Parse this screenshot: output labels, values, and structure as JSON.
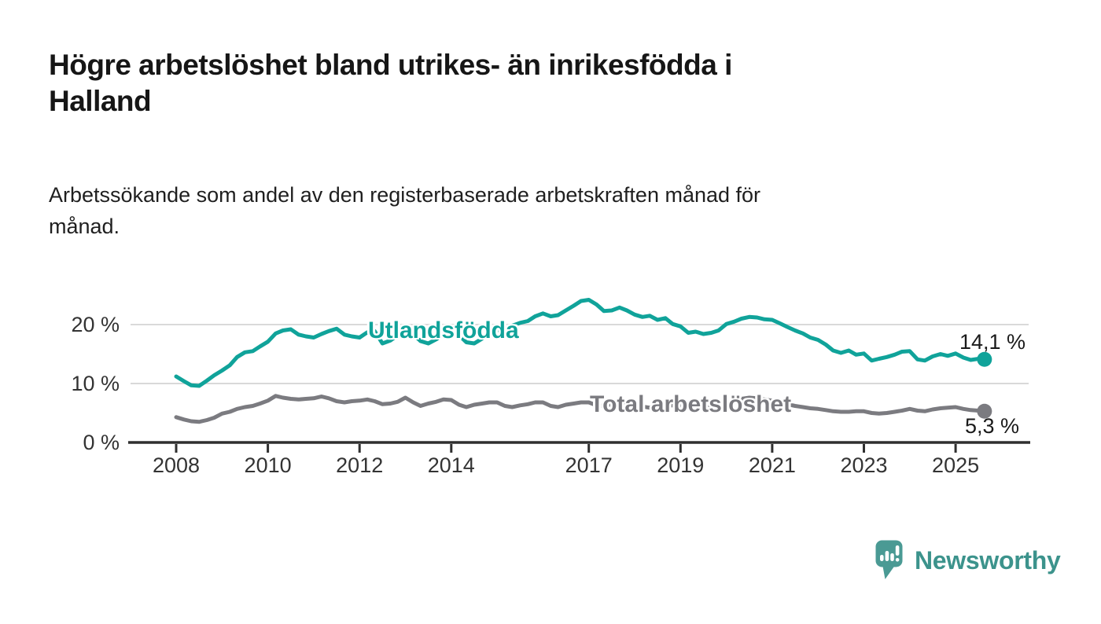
{
  "header": {
    "title_lines": [
      "Högre arbetslöshet bland utrikes- än inrikesfödda i",
      "Halland"
    ],
    "subtitle_lines": [
      "Arbetssökande som andel av den registerbaserade arbetskraften månad för",
      "månad."
    ]
  },
  "footer": {
    "brand": "Newsworthy"
  },
  "colors": {
    "accent_teal": "#10a39a",
    "accent_gray": "#7b7b80",
    "axis": "#2f2f2f",
    "gridline": "#d9d9d9",
    "text": "#1a1a1a",
    "logo_teal": "#4a9a94",
    "logo_text_teal": "#3c938c"
  },
  "chart_data": {
    "type": "line",
    "title": "Högre arbetslöshet bland utrikes- än inrikesfödda i Halland",
    "subtitle": "Arbetssökande som andel av den registerbaserade arbetskraften månad för månad.",
    "unit": "%",
    "xlabel": "",
    "ylabel": "",
    "grid": true,
    "legend_position": "inline-labels",
    "xlim": [
      2007.0,
      2026.6
    ],
    "ylim": [
      0,
      25.5
    ],
    "x_ticks": [
      2008,
      2010,
      2012,
      2014,
      2017,
      2019,
      2021,
      2023,
      2025
    ],
    "x_tick_labels": [
      "2008",
      "2010",
      "2012",
      "2014",
      "2017",
      "2019",
      "2021",
      "2023",
      "2025"
    ],
    "y_ticks": [
      0,
      10,
      20
    ],
    "y_tick_labels": [
      "0 %",
      "10 %",
      "20 %"
    ],
    "x": [
      2008,
      2008.17,
      2008.33,
      2008.5,
      2008.67,
      2008.83,
      2009,
      2009.17,
      2009.33,
      2009.5,
      2009.67,
      2009.83,
      2010,
      2010.17,
      2010.33,
      2010.5,
      2010.67,
      2010.83,
      2011,
      2011.17,
      2011.33,
      2011.5,
      2011.67,
      2011.83,
      2012,
      2012.17,
      2012.33,
      2012.5,
      2012.67,
      2012.83,
      2013,
      2013.17,
      2013.33,
      2013.5,
      2013.67,
      2013.83,
      2014,
      2014.17,
      2014.33,
      2014.5,
      2014.67,
      2014.83,
      2015,
      2015.17,
      2015.33,
      2015.5,
      2015.67,
      2015.83,
      2016,
      2016.17,
      2016.33,
      2016.5,
      2016.67,
      2016.83,
      2017,
      2017.17,
      2017.33,
      2017.5,
      2017.67,
      2017.83,
      2018,
      2018.17,
      2018.33,
      2018.5,
      2018.67,
      2018.83,
      2019,
      2019.17,
      2019.33,
      2019.5,
      2019.67,
      2019.83,
      2020,
      2020.17,
      2020.33,
      2020.5,
      2020.67,
      2020.83,
      2021,
      2021.17,
      2021.33,
      2021.5,
      2021.67,
      2021.83,
      2022,
      2022.17,
      2022.33,
      2022.5,
      2022.67,
      2022.83,
      2023,
      2023.17,
      2023.33,
      2023.5,
      2023.67,
      2023.83,
      2024,
      2024.17,
      2024.33,
      2024.5,
      2024.67,
      2024.83,
      2025,
      2025.17,
      2025.33,
      2025.5,
      2025.63
    ],
    "series": [
      {
        "name": "Utlandsfödda",
        "color": "#10a39a",
        "end_label": "14,1 %",
        "end_value": 14.1,
        "values": [
          11.2,
          10.4,
          9.7,
          9.6,
          10.5,
          11.4,
          12.2,
          13.1,
          14.5,
          15.3,
          15.5,
          16.3,
          17.1,
          18.5,
          19.0,
          19.2,
          18.3,
          18.0,
          17.8,
          18.4,
          18.9,
          19.3,
          18.3,
          18.0,
          17.8,
          18.7,
          18.9,
          16.8,
          17.3,
          18.2,
          18.6,
          18.4,
          17.2,
          16.8,
          17.5,
          18.4,
          18.6,
          18.2,
          17.0,
          16.8,
          17.6,
          18.8,
          19.0,
          19.4,
          19.8,
          20.3,
          20.6,
          21.4,
          21.9,
          21.4,
          21.6,
          22.4,
          23.2,
          24.0,
          24.2,
          23.4,
          22.3,
          22.4,
          22.9,
          22.4,
          21.7,
          21.3,
          21.5,
          20.8,
          21.1,
          20.1,
          19.7,
          18.6,
          18.8,
          18.4,
          18.6,
          19.0,
          20.1,
          20.5,
          21.0,
          21.3,
          21.2,
          20.9,
          20.8,
          20.2,
          19.6,
          19.0,
          18.5,
          17.8,
          17.4,
          16.6,
          15.6,
          15.2,
          15.6,
          14.9,
          15.1,
          13.9,
          14.2,
          14.5,
          14.9,
          15.4,
          15.5,
          14.1,
          13.9,
          14.6,
          15.0,
          14.7,
          15.1,
          14.4,
          14.0,
          14.2,
          14.1
        ]
      },
      {
        "name": "Total arbetslöshet",
        "color": "#7b7b80",
        "end_label": "5,3 %",
        "end_value": 5.3,
        "values": [
          4.3,
          3.9,
          3.6,
          3.5,
          3.8,
          4.2,
          4.9,
          5.2,
          5.7,
          6.0,
          6.2,
          6.6,
          7.1,
          7.9,
          7.6,
          7.4,
          7.3,
          7.4,
          7.5,
          7.8,
          7.5,
          7.0,
          6.8,
          7.0,
          7.1,
          7.3,
          7.0,
          6.5,
          6.6,
          6.9,
          7.6,
          6.8,
          6.2,
          6.6,
          6.9,
          7.3,
          7.2,
          6.4,
          6.0,
          6.4,
          6.6,
          6.8,
          6.8,
          6.2,
          6.0,
          6.3,
          6.5,
          6.8,
          6.8,
          6.2,
          6.0,
          6.4,
          6.6,
          6.8,
          6.8,
          6.3,
          6.2,
          6.5,
          6.6,
          6.7,
          6.5,
          6.1,
          5.9,
          6.1,
          6.2,
          6.3,
          6.3,
          6.0,
          5.9,
          6.0,
          6.1,
          6.3,
          6.6,
          7.0,
          7.4,
          7.6,
          7.5,
          7.3,
          7.1,
          6.8,
          6.5,
          6.2,
          6.0,
          5.8,
          5.7,
          5.5,
          5.3,
          5.2,
          5.2,
          5.3,
          5.3,
          5.0,
          4.9,
          5.0,
          5.2,
          5.4,
          5.7,
          5.4,
          5.3,
          5.6,
          5.8,
          5.9,
          6.0,
          5.7,
          5.5,
          5.4,
          5.3
        ]
      }
    ]
  }
}
